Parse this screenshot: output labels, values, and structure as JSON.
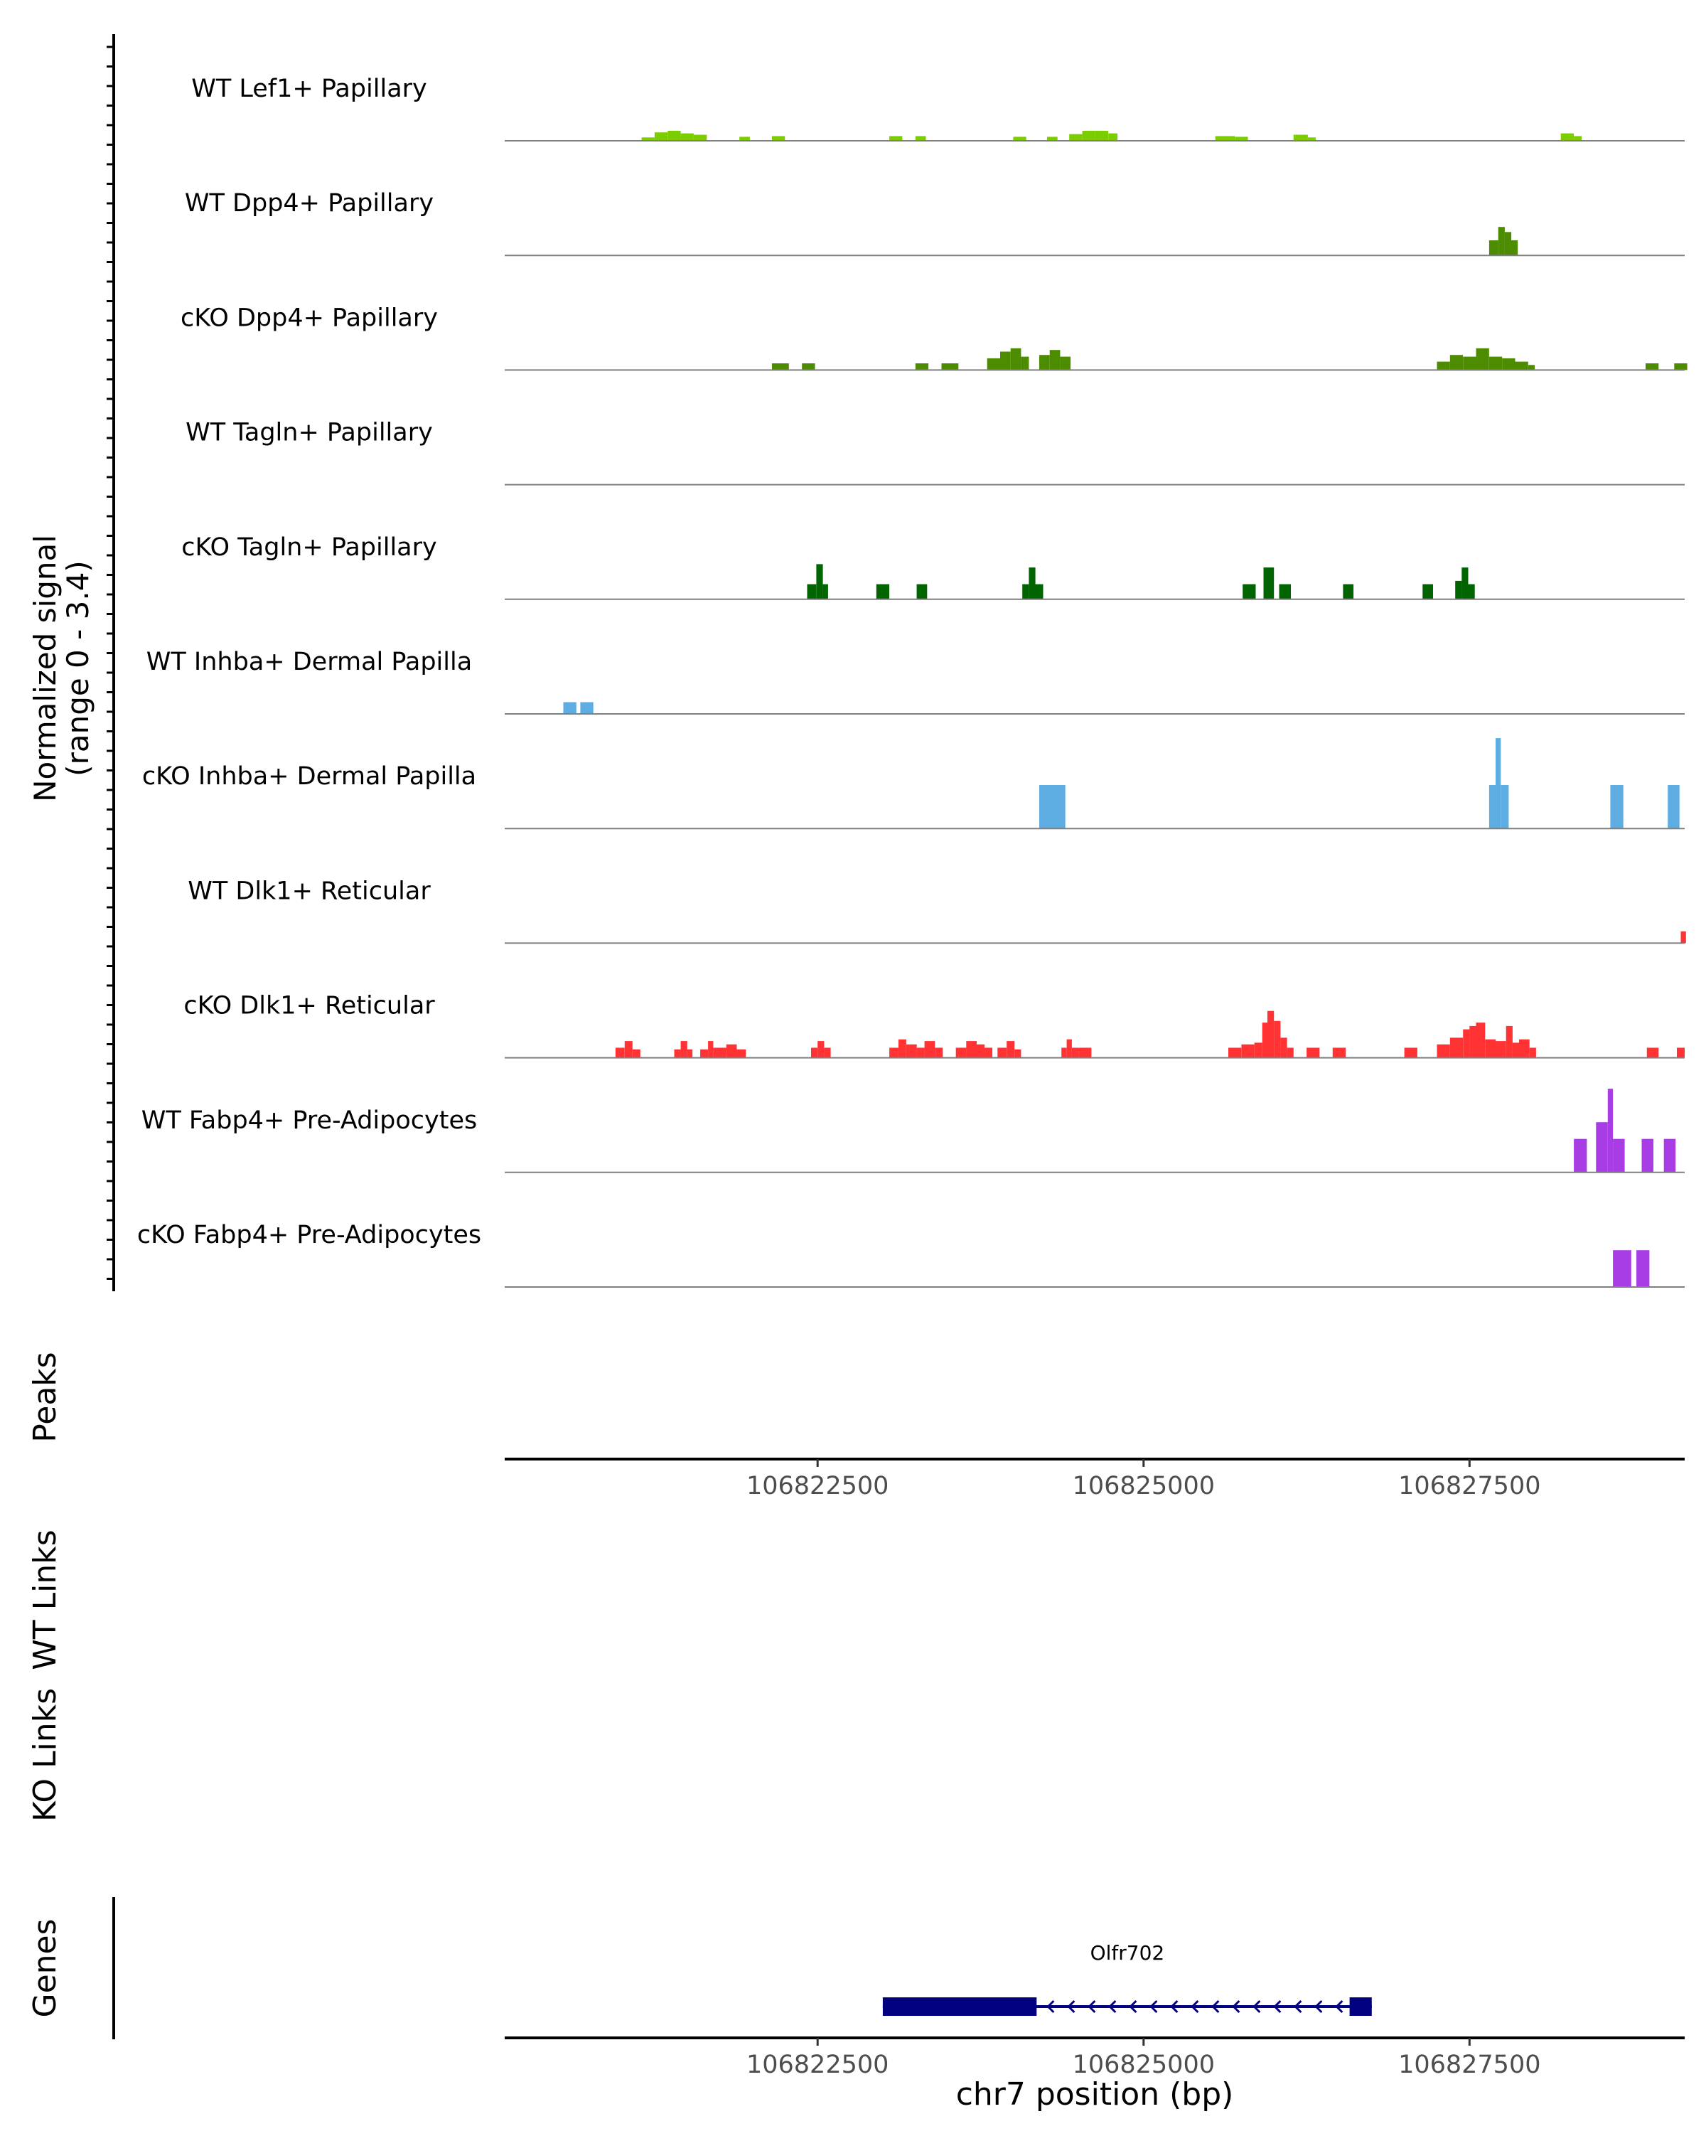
{
  "chart_data": {
    "type": "area",
    "title": "",
    "xlabel": "chr7 position (bp)",
    "chromosome": "chr7",
    "xlim": [
      106820100,
      106829150
    ],
    "x_ticks": [
      106822500,
      106825000,
      106827500
    ],
    "x_tick_labels": [
      "106822500",
      "106825000",
      "106827500"
    ],
    "coverage": {
      "ylabel_line1": "Normalized signal",
      "ylabel_line2": "(range 0 - 3.4)",
      "ylim": [
        0,
        3.4
      ],
      "tracks": [
        {
          "name": "WT Lef1+ Papillary",
          "color": "#7CCD00",
          "peaks": [
            [
              106821150,
              106821250,
              0.1
            ],
            [
              106821250,
              106821350,
              0.25
            ],
            [
              106821350,
              106821450,
              0.3
            ],
            [
              106821450,
              106821550,
              0.22
            ],
            [
              106821550,
              106821650,
              0.18
            ],
            [
              106821750,
              106821800,
              0.0
            ],
            [
              106821900,
              106821980,
              0.12
            ],
            [
              106822150,
              106822250,
              0.14
            ],
            [
              106823050,
              106823150,
              0.14
            ],
            [
              106823250,
              106823330,
              0.14
            ],
            [
              106824000,
              106824100,
              0.12
            ],
            [
              106824260,
              106824340,
              0.12
            ],
            [
              106824430,
              106824530,
              0.2
            ],
            [
              106824530,
              106824630,
              0.3
            ],
            [
              106824630,
              106824730,
              0.3
            ],
            [
              106824730,
              106824800,
              0.22
            ],
            [
              106825550,
              106825700,
              0.14
            ],
            [
              106825700,
              106825800,
              0.12
            ],
            [
              106826150,
              106826260,
              0.18
            ],
            [
              106826260,
              106826320,
              0.1
            ],
            [
              106828200,
              106828300,
              0.22
            ],
            [
              106828300,
              106828360,
              0.14
            ]
          ]
        },
        {
          "name": "WT Dpp4+ Papillary",
          "color": "#4D8C00",
          "peaks": [
            [
              106827650,
              106827720,
              0.45
            ],
            [
              106827720,
              106827770,
              0.85
            ],
            [
              106827770,
              106827820,
              0.7
            ],
            [
              106827820,
              106827870,
              0.45
            ]
          ]
        },
        {
          "name": "cKO Dpp4+ Papillary",
          "color": "#4D8C00",
          "peaks": [
            [
              106822150,
              106822280,
              0.2
            ],
            [
              106822380,
              106822480,
              0.2
            ],
            [
              106823250,
              106823350,
              0.2
            ],
            [
              106823450,
              106823580,
              0.2
            ],
            [
              106823800,
              106823900,
              0.35
            ],
            [
              106823900,
              106823980,
              0.55
            ],
            [
              106823980,
              106824060,
              0.65
            ],
            [
              106824060,
              106824120,
              0.4
            ],
            [
              106824200,
              106824280,
              0.45
            ],
            [
              106824280,
              106824360,
              0.6
            ],
            [
              106824360,
              106824440,
              0.4
            ],
            [
              106827250,
              106827350,
              0.25
            ],
            [
              106827350,
              106827450,
              0.45
            ],
            [
              106827450,
              106827550,
              0.4
            ],
            [
              106827550,
              106827650,
              0.65
            ],
            [
              106827650,
              106827750,
              0.4
            ],
            [
              106827750,
              106827850,
              0.35
            ],
            [
              106827850,
              106827950,
              0.25
            ],
            [
              106827950,
              106828000,
              0.15
            ],
            [
              106828850,
              106828950,
              0.2
            ],
            [
              106829070,
              106829170,
              0.2
            ]
          ]
        },
        {
          "name": "WT Tagln+ Papillary",
          "color": "#006400",
          "peaks": []
        },
        {
          "name": "cKO Tagln+ Papillary",
          "color": "#006400",
          "peaks": [
            [
              106822420,
              106822490,
              0.45
            ],
            [
              106822490,
              106822540,
              1.05
            ],
            [
              106822540,
              106822580,
              0.45
            ],
            [
              106822950,
              106823050,
              0.45
            ],
            [
              106823260,
              106823340,
              0.45
            ],
            [
              106824070,
              106824120,
              0.45
            ],
            [
              106824120,
              106824170,
              0.95
            ],
            [
              106824170,
              106824230,
              0.45
            ],
            [
              106825760,
              106825860,
              0.45
            ],
            [
              106825920,
              106826000,
              0.95
            ],
            [
              106826040,
              106826130,
              0.45
            ],
            [
              106826530,
              106826610,
              0.45
            ],
            [
              106827140,
              106827220,
              0.45
            ],
            [
              106827390,
              106827440,
              0.55
            ],
            [
              106827440,
              106827490,
              0.95
            ],
            [
              106827490,
              106827540,
              0.45
            ]
          ]
        },
        {
          "name": "WT Inhba+ Dermal Papilla",
          "color": "#5DADE2",
          "peaks": [
            [
              106820550,
              106820650,
              0.35
            ],
            [
              106820680,
              106820780,
              0.35
            ]
          ]
        },
        {
          "name": "cKO Inhba+ Dermal Papilla",
          "color": "#5DADE2",
          "peaks": [
            [
              106824200,
              106824400,
              1.3
            ],
            [
              106827650,
              106827700,
              1.3
            ],
            [
              106827700,
              106827740,
              2.7
            ],
            [
              106827740,
              106827800,
              1.3
            ],
            [
              106828580,
              106828680,
              1.3
            ],
            [
              106829020,
              106829110,
              1.3
            ]
          ]
        },
        {
          "name": "WT Dlk1+ Reticular",
          "color": "#FF3333",
          "peaks": [
            [
              106829120,
              106829160,
              0.35
            ]
          ]
        },
        {
          "name": "cKO Dlk1+ Reticular",
          "color": "#FF3333",
          "peaks": [
            [
              106820950,
              106821020,
              0.3
            ],
            [
              106821020,
              106821080,
              0.5
            ],
            [
              106821080,
              106821140,
              0.25
            ],
            [
              106821400,
              106821450,
              0.25
            ],
            [
              106821450,
              106821500,
              0.5
            ],
            [
              106821500,
              106821540,
              0.25
            ],
            [
              106821600,
              106821660,
              0.25
            ],
            [
              106821660,
              106821700,
              0.5
            ],
            [
              106821700,
              106821800,
              0.3
            ],
            [
              106821800,
              106821880,
              0.4
            ],
            [
              106821880,
              106821950,
              0.25
            ],
            [
              106822450,
              106822500,
              0.3
            ],
            [
              106822500,
              106822550,
              0.5
            ],
            [
              106822550,
              106822600,
              0.3
            ],
            [
              106823050,
              106823120,
              0.3
            ],
            [
              106823120,
              106823180,
              0.55
            ],
            [
              106823180,
              106823260,
              0.4
            ],
            [
              106823260,
              106823320,
              0.3
            ],
            [
              106823320,
              106823400,
              0.5
            ],
            [
              106823400,
              106823460,
              0.3
            ],
            [
              106823560,
              106823640,
              0.3
            ],
            [
              106823640,
              106823720,
              0.5
            ],
            [
              106823720,
              106823780,
              0.4
            ],
            [
              106823780,
              106823840,
              0.3
            ],
            [
              106823880,
              106823950,
              0.3
            ],
            [
              106823950,
              106824010,
              0.5
            ],
            [
              106824010,
              106824060,
              0.25
            ],
            [
              106824370,
              106824410,
              0.3
            ],
            [
              106824410,
              106824450,
              0.55
            ],
            [
              106824450,
              106824500,
              0.3
            ],
            [
              106824500,
              106824600,
              0.3
            ],
            [
              106825650,
              106825750,
              0.3
            ],
            [
              106825750,
              106825850,
              0.4
            ],
            [
              106825850,
              106825910,
              0.45
            ],
            [
              106825910,
              106825950,
              1.05
            ],
            [
              106825950,
              106826000,
              1.4
            ],
            [
              106826000,
              106826050,
              1.1
            ],
            [
              106826050,
              106826100,
              0.6
            ],
            [
              106826100,
              106826150,
              0.3
            ],
            [
              106826250,
              106826350,
              0.3
            ],
            [
              106826450,
              106826550,
              0.3
            ],
            [
              106827000,
              106827100,
              0.3
            ],
            [
              106827250,
              106827350,
              0.4
            ],
            [
              106827350,
              106827450,
              0.6
            ],
            [
              106827450,
              106827500,
              0.85
            ],
            [
              106827500,
              106827550,
              0.95
            ],
            [
              106827550,
              106827620,
              1.05
            ],
            [
              106827620,
              106827700,
              0.55
            ],
            [
              106827700,
              106827780,
              0.5
            ],
            [
              106827780,
              106827830,
              0.95
            ],
            [
              106827830,
              106827880,
              0.45
            ],
            [
              106827880,
              106827960,
              0.55
            ],
            [
              106827960,
              106828010,
              0.3
            ],
            [
              106828860,
              106828950,
              0.3
            ],
            [
              106829090,
              106829150,
              0.3
            ]
          ]
        },
        {
          "name": "WT Fabp4+ Pre-Adipocytes",
          "color": "#A83DE6",
          "peaks": [
            [
              106828300,
              106828400,
              1.0
            ],
            [
              106828470,
              106828560,
              1.5
            ],
            [
              106828560,
              106828600,
              2.5
            ],
            [
              106828600,
              106828690,
              1.0
            ],
            [
              106828820,
              106828910,
              1.0
            ],
            [
              106828990,
              106829080,
              1.0
            ]
          ]
        },
        {
          "name": "cKO Fabp4+ Pre-Adipocytes",
          "color": "#A83DE6",
          "peaks": [
            [
              106828600,
              106828740,
              1.1
            ],
            [
              106828780,
              106828880,
              1.1
            ]
          ]
        }
      ]
    },
    "panels": {
      "peaks_label": "Peaks",
      "wt_links_label": "WT Links",
      "ko_links_label": "KO Links",
      "genes_label": "Genes"
    },
    "genes": [
      {
        "name": "Olfr702",
        "start": 106823000,
        "end": 106826750,
        "strand": "-",
        "exons": [
          [
            106823000,
            106824180
          ],
          [
            106826580,
            106826750
          ]
        ],
        "color": "#000080"
      }
    ]
  }
}
